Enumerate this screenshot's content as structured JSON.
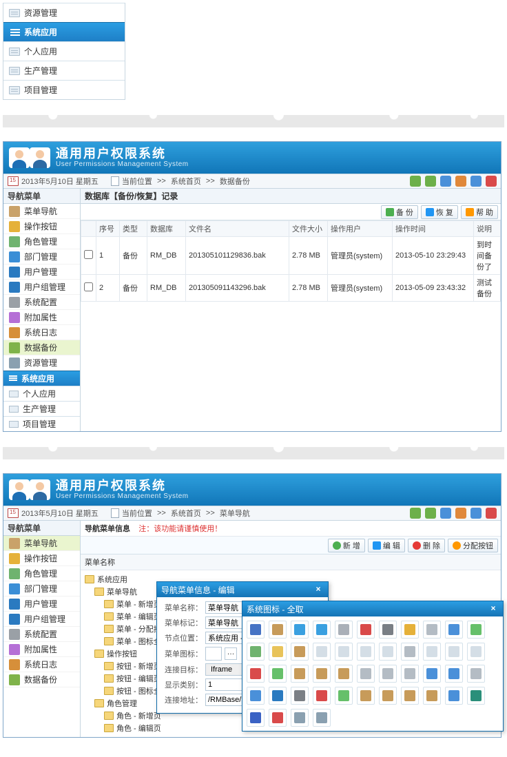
{
  "colors": {
    "header_grad_top": "#2e9fdd",
    "header_grad_bottom": "#1176b8",
    "section_grad_top": "#2b9ee3",
    "section_grad_bottom": "#1e7fc6",
    "border": "#c7d6e0",
    "row_alt": "#f5f8fb",
    "active_nav": "#eaf5cf",
    "warn": "#d33"
  },
  "panel1": {
    "items_above": [
      "资源管理"
    ],
    "section": "系统应用",
    "items_below": [
      "个人应用",
      "生产管理",
      "项目管理"
    ]
  },
  "app_header": {
    "title": "通用用户权限系统",
    "subtitle": "User Permissions Management System"
  },
  "datebar": {
    "date": "2013年5月10日 星期五",
    "crumb_prefix": "当前位置",
    "crumb_p2": [
      "系统首页",
      "数据备份"
    ],
    "crumb_p3": [
      "系统首页",
      "菜单导航"
    ]
  },
  "leftnav": {
    "heading": "导航菜单",
    "items": [
      {
        "label": "菜单导航",
        "icon": "#c9a26a"
      },
      {
        "label": "操作按钮",
        "icon": "#e5b13a"
      },
      {
        "label": "角色管理",
        "icon": "#6fb36f"
      },
      {
        "label": "部门管理",
        "icon": "#3a8ed6"
      },
      {
        "label": "用户管理",
        "icon": "#2a7ac0"
      },
      {
        "label": "用户组管理",
        "icon": "#2a7ac0"
      },
      {
        "label": "系统配置",
        "icon": "#9aa0a6"
      },
      {
        "label": "附加属性",
        "icon": "#b56fd6"
      },
      {
        "label": "系统日志",
        "icon": "#d68f3a"
      },
      {
        "label": "数据备份",
        "icon": "#7fb34a"
      },
      {
        "label": "资源管理",
        "icon": "#8aa0b0"
      }
    ],
    "section": "系统应用",
    "subs": [
      "个人应用",
      "生产管理",
      "项目管理"
    ]
  },
  "panel2": {
    "content_title": "数据库【备份/恢复】记录",
    "toolbar": [
      {
        "label": "备 份",
        "icon": "#4caf50"
      },
      {
        "label": "恢 复",
        "icon": "#2196f3"
      },
      {
        "label": "帮 助",
        "icon": "#ff9800"
      }
    ],
    "columns": [
      "",
      "序号",
      "类型",
      "数据库",
      "文件名",
      "文件大小",
      "操作用户",
      "操作时间",
      "说明"
    ],
    "rows": [
      [
        "",
        "1",
        "备份",
        "RM_DB",
        "201305101129836.bak",
        "2.78 MB",
        "管理员(system)",
        "2013-05-10 23:29:43",
        "到时间备份了"
      ],
      [
        "",
        "2",
        "备份",
        "RM_DB",
        "201305091143296.bak",
        "2.78 MB",
        "管理员(system)",
        "2013-05-09 23:43:32",
        "测试备份"
      ]
    ],
    "col_widths": [
      "22px",
      "34px",
      "40px",
      "56px",
      "150px",
      "56px",
      "94px",
      "118px",
      "auto"
    ],
    "active_nav_index": 9
  },
  "panel3": {
    "content_title": "导航菜单信息",
    "content_note_label": "注：",
    "content_note": "该功能请谨慎使用！",
    "active_nav_index": 0,
    "nav_items_shown": 9,
    "toolbar": [
      {
        "label": "新 增",
        "cls": "green"
      },
      {
        "label": "编 辑",
        "cls": "blue"
      },
      {
        "label": "删 除",
        "cls": "red"
      },
      {
        "label": "分配按钮",
        "cls": "orange"
      }
    ],
    "tree_header": "菜单名称",
    "tree": [
      {
        "lvl": 0,
        "label": "系统应用"
      },
      {
        "lvl": 1,
        "label": "菜单导航"
      },
      {
        "lvl": 2,
        "label": "菜单 - 新增页"
      },
      {
        "lvl": 2,
        "label": "菜单 - 编辑页"
      },
      {
        "lvl": 2,
        "label": "菜单 - 分配按钮页"
      },
      {
        "lvl": 2,
        "label": "菜单 - 图标全取"
      },
      {
        "lvl": 1,
        "label": "操作按钮"
      },
      {
        "lvl": 2,
        "label": "按钮 - 新增页"
      },
      {
        "lvl": 2,
        "label": "按钮 - 编辑页"
      },
      {
        "lvl": 2,
        "label": "按钮 - 图标全取"
      },
      {
        "lvl": 1,
        "label": "角色管理"
      },
      {
        "lvl": 2,
        "label": "角色 - 新增页"
      },
      {
        "lvl": 2,
        "label": "角色 - 编辑页"
      }
    ],
    "dialog1": {
      "title": "导航菜单信息 - 编辑",
      "fields": [
        {
          "label": "菜单名称：",
          "value": "菜单导航",
          "type": "text"
        },
        {
          "label": "菜单标记：",
          "value": "菜单导航",
          "type": "text"
        },
        {
          "label": "节点位置：",
          "value": "系统应用 - 父节",
          "type": "text"
        },
        {
          "label": "菜单图标：",
          "value": "",
          "type": "iconpick"
        },
        {
          "label": "连接目标：",
          "value": "Iframe",
          "type": "select"
        },
        {
          "label": "显示类别：",
          "value": "1",
          "type": "text"
        },
        {
          "label": "连接地址：",
          "value": "/RMBase/SysM",
          "type": "text"
        }
      ]
    },
    "dialog2": {
      "title": "系统图标 - 全取",
      "icon_colors": [
        "#4673c4",
        "#c79b5a",
        "#3aa0e0",
        "#3aa0e0",
        "#aab0b8",
        "#d94a4a",
        "#7a7f85",
        "#e5b13a",
        "#b4bcc4",
        "#4a90d9",
        "#66c06a",
        "#6fb36f",
        "#e8c35a",
        "#c79b5a",
        "#d4dee6",
        "#d4dee6",
        "#d4dee6",
        "#d4dee6",
        "#b4bcc4",
        "#d4dee6",
        "#d4dee6",
        "#d4dee6",
        "#d94a4a",
        "#66c06a",
        "#c79b5a",
        "#c79b5a",
        "#c79b5a",
        "#b4bcc4",
        "#b4bcc4",
        "#b4bcc4",
        "#4a90d9",
        "#4a90d9",
        "#b4bcc4",
        "#4a90d9",
        "#2a7ac0",
        "#7a7f85",
        "#d94a4a",
        "#66c06a",
        "#c79b5a",
        "#c79b5a",
        "#c79b5a",
        "#c79b5a",
        "#4a90d9",
        "#2a8f7a",
        "#3a62c4",
        "#d94a4a",
        "#8aa0b0",
        "#8aa0b0"
      ]
    }
  }
}
